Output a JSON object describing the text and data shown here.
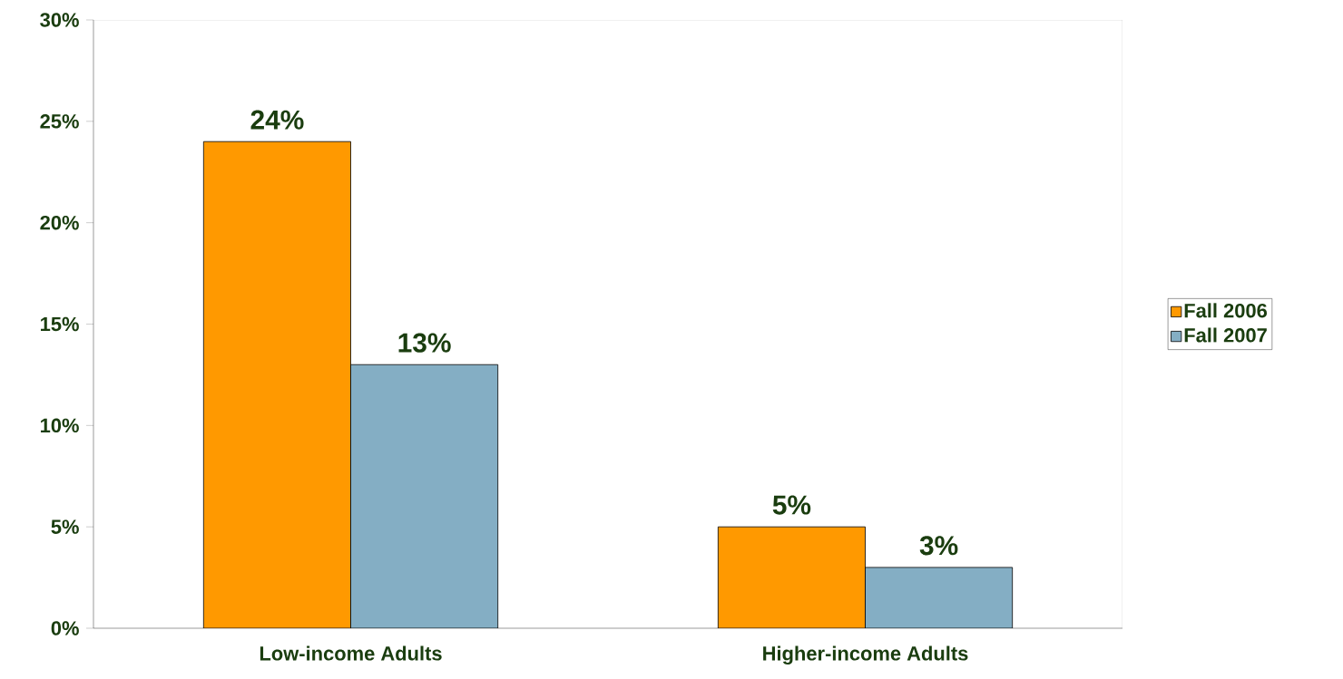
{
  "chart_data": {
    "type": "bar",
    "categories": [
      "Low-income Adults",
      "Higher-income Adults"
    ],
    "series": [
      {
        "name": "Fall 2006",
        "color": "#ff9900",
        "values": [
          24,
          5
        ],
        "value_labels": [
          "24%",
          "5%"
        ]
      },
      {
        "name": "Fall 2007",
        "color": "#84aec4",
        "values": [
          13,
          3
        ],
        "value_labels": [
          "13%",
          "3%"
        ]
      }
    ],
    "ylim": [
      0,
      30
    ],
    "yticks": [
      {
        "value": 0,
        "label": "0%"
      },
      {
        "value": 5,
        "label": "5%"
      },
      {
        "value": 10,
        "label": "10%"
      },
      {
        "value": 15,
        "label": "15%"
      },
      {
        "value": 20,
        "label": "20%"
      },
      {
        "value": 25,
        "label": "25%"
      },
      {
        "value": 30,
        "label": "30%"
      }
    ],
    "legend": "right",
    "grid": false
  }
}
